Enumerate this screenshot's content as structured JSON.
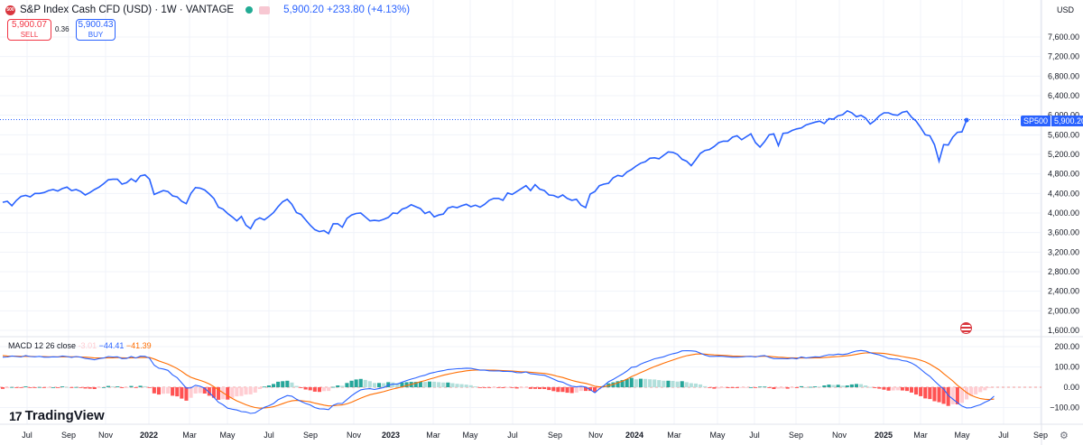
{
  "header": {
    "logo_text": "500",
    "title": "S&P Index Cash CFD (USD) · 1W · VANTAGE",
    "last": "5,900.20",
    "change": "+233.80 (+4.13%)"
  },
  "quote": {
    "sell_price": "5,900.07",
    "sell_label": "SELL",
    "spread": "0.36",
    "buy_price": "5,900.43",
    "buy_label": "BUY"
  },
  "currency": "USD",
  "last_tag": {
    "symbol": "SP500",
    "value": "5,900.20"
  },
  "macd_legend": {
    "label": "MACD 12 26 close",
    "hist": "-3.01",
    "macd": "−44.41",
    "signal": "−41.39"
  },
  "brand": "TradingView",
  "colors": {
    "price": "#2962ff",
    "macd": "#2962ff",
    "signal": "#ff6d00",
    "hist_pos_strong": "#26a69a",
    "hist_pos_weak": "#b2dfdb",
    "hist_neg_strong": "#ff5252",
    "hist_neg_weak": "#ffcdd2"
  },
  "chart_data": [
    {
      "type": "line",
      "title": "S&P Index Cash CFD (USD) · 1W · VANTAGE",
      "x_labels": [
        "Jul",
        "Sep",
        "Nov",
        "2022",
        "Mar",
        "May",
        "Jul",
        "Sep",
        "Nov",
        "2023",
        "Mar",
        "May",
        "Jul",
        "Sep",
        "Nov",
        "2024",
        "Mar",
        "May",
        "Jul",
        "Sep",
        "Nov",
        "2025",
        "Mar",
        "May",
        "Jul",
        "Sep"
      ],
      "y_ticks": [
        1600,
        2000,
        2400,
        2800,
        3200,
        3600,
        4000,
        4400,
        4800,
        5200,
        5600,
        6000,
        6400,
        6800,
        7200,
        7600
      ],
      "y_tick_labels": [
        "1,600.00",
        "2,000.00",
        "2,400.00",
        "2,800.00",
        "3,200.00",
        "3,600.00",
        "4,000.00",
        "4,400.00",
        "4,800.00",
        "5,200.00",
        "5,600.00",
        "6,000.00",
        "6,400.00",
        "6,800.00",
        "7,200.00",
        "7,600.00"
      ],
      "ylim": [
        1450,
        7900
      ],
      "series": [
        {
          "name": "SP500",
          "values": [
            4220,
            4240,
            4150,
            4260,
            4340,
            4360,
            4330,
            4400,
            4400,
            4420,
            4460,
            4480,
            4450,
            4500,
            4530,
            4460,
            4480,
            4440,
            4370,
            4420,
            4480,
            4530,
            4600,
            4680,
            4690,
            4690,
            4590,
            4620,
            4700,
            4640,
            4760,
            4780,
            4690,
            4380,
            4420,
            4460,
            4440,
            4350,
            4330,
            4240,
            4190,
            4400,
            4520,
            4510,
            4470,
            4390,
            4300,
            4120,
            4080,
            3990,
            3920,
            3840,
            3930,
            3750,
            3680,
            3850,
            3900,
            3860,
            3930,
            4010,
            4130,
            4230,
            4280,
            4180,
            4010,
            3970,
            3860,
            3750,
            3660,
            3620,
            3640,
            3580,
            3780,
            3780,
            3710,
            3890,
            3960,
            3990,
            4000,
            3920,
            3840,
            3850,
            3840,
            3870,
            3910,
            4000,
            3990,
            4080,
            4110,
            4170,
            4130,
            4090,
            3990,
            4030,
            3920,
            3960,
            3980,
            4100,
            4130,
            4110,
            4150,
            4180,
            4130,
            4160,
            4120,
            4180,
            4260,
            4300,
            4300,
            4260,
            4410,
            4380,
            4440,
            4500,
            4560,
            4460,
            4580,
            4490,
            4460,
            4370,
            4360,
            4320,
            4370,
            4300,
            4260,
            4280,
            4160,
            4110,
            4390,
            4440,
            4560,
            4590,
            4610,
            4720,
            4770,
            4750,
            4840,
            4890,
            4960,
            5020,
            5050,
            5120,
            5130,
            5110,
            5180,
            5250,
            5240,
            5200,
            5100,
            5060,
            4970,
            5090,
            5220,
            5280,
            5300,
            5360,
            5440,
            5470,
            5470,
            5550,
            5580,
            5500,
            5560,
            5620,
            5440,
            5350,
            5460,
            5600,
            5620,
            5380,
            5630,
            5640,
            5690,
            5720,
            5740,
            5800,
            5830,
            5860,
            5880,
            5830,
            5930,
            5920,
            5990,
            6010,
            6090,
            6050,
            5970,
            6000,
            5940,
            5820,
            5890,
            5990,
            6050,
            6050,
            6010,
            6000,
            6060,
            6080,
            5960,
            5880,
            5750,
            5600,
            5580,
            5400,
            5060,
            5400,
            5390,
            5550,
            5650,
            5660,
            5900.2
          ]
        }
      ]
    },
    {
      "type": "bar",
      "title": "MACD 12 26 close",
      "y_ticks": [
        -100,
        0,
        100,
        200
      ],
      "y_tick_labels": [
        "−100.00",
        "0.00",
        "100.00",
        "200.00"
      ],
      "ylim": [
        -145,
        235
      ],
      "series": [
        {
          "name": "MACD",
          "values": [
            148,
            149,
            154,
            151,
            149,
            156,
            151,
            150,
            152,
            148,
            148,
            150,
            149,
            154,
            151,
            147,
            151,
            148,
            142,
            139,
            135,
            141,
            144,
            151,
            149,
            150,
            141,
            142,
            151,
            144,
            153,
            152,
            143,
            109,
            94,
            90,
            83,
            61,
            47,
            22,
            -4,
            -3,
            10,
            5,
            -5,
            -26,
            -49,
            -74,
            -86,
            -103,
            -108,
            -112,
            -120,
            -122,
            -129,
            -126,
            -112,
            -99,
            -91,
            -80,
            -62,
            -51,
            -41,
            -44,
            -59,
            -70,
            -80,
            -87,
            -100,
            -106,
            -107,
            -110,
            -89,
            -80,
            -80,
            -61,
            -42,
            -26,
            -13,
            -9,
            -7,
            -11,
            -6,
            -2,
            10,
            15,
            16,
            25,
            33,
            40,
            46,
            54,
            59,
            68,
            73,
            78,
            82,
            87,
            89,
            91,
            92,
            94,
            93,
            89,
            84,
            84,
            81,
            80,
            81,
            78,
            78,
            77,
            72,
            71,
            75,
            66,
            64,
            61,
            59,
            50,
            40,
            30,
            25,
            14,
            5,
            2,
            5,
            1,
            -12,
            -27,
            -8,
            8,
            27,
            38,
            52,
            65,
            80,
            98,
            101,
            114,
            123,
            131,
            140,
            145,
            150,
            158,
            165,
            170,
            179,
            180,
            179,
            177,
            168,
            158,
            152,
            152,
            153,
            152,
            150,
            148,
            148,
            149,
            151,
            152,
            149,
            154,
            156,
            147,
            141,
            141,
            141,
            140,
            143,
            140,
            149,
            144,
            147,
            150,
            149,
            155,
            160,
            159,
            163,
            161,
            164,
            172,
            178,
            181,
            178,
            170,
            164,
            159,
            151,
            142,
            139,
            138,
            131,
            128,
            119,
            106,
            89,
            70,
            54,
            31,
            10,
            -9,
            -40,
            -58,
            -76,
            -93,
            -102,
            -101,
            -93,
            -86,
            -74,
            -64,
            -44
          ]
        },
        {
          "name": "Signal",
          "values": [
            156,
            154,
            153,
            153,
            152,
            152,
            152,
            151,
            151,
            151,
            150,
            150,
            150,
            150,
            150,
            150,
            150,
            149,
            148,
            146,
            144,
            144,
            144,
            145,
            145,
            146,
            145,
            144,
            145,
            145,
            146,
            147,
            146,
            139,
            130,
            122,
            114,
            103,
            92,
            78,
            62,
            49,
            41,
            34,
            26,
            16,
            3,
            -12,
            -27,
            -42,
            -55,
            -67,
            -77,
            -86,
            -94,
            -100,
            -103,
            -102,
            -100,
            -96,
            -89,
            -81,
            -73,
            -67,
            -65,
            -66,
            -69,
            -72,
            -78,
            -83,
            -88,
            -92,
            -91,
            -89,
            -87,
            -82,
            -74,
            -64,
            -54,
            -45,
            -37,
            -32,
            -27,
            -22,
            -15,
            -9,
            -4,
            2,
            8,
            14,
            20,
            27,
            33,
            40,
            46,
            53,
            59,
            64,
            69,
            74,
            77,
            81,
            83,
            85,
            85,
            85,
            84,
            84,
            83,
            82,
            81,
            80,
            78,
            76,
            76,
            74,
            72,
            70,
            68,
            64,
            59,
            53,
            48,
            41,
            34,
            28,
            23,
            19,
            13,
            5,
            2,
            3,
            8,
            14,
            22,
            30,
            40,
            52,
            62,
            72,
            82,
            92,
            102,
            110,
            118,
            126,
            134,
            142,
            149,
            155,
            159,
            163,
            164,
            163,
            161,
            159,
            158,
            157,
            156,
            154,
            153,
            152,
            152,
            152,
            151,
            152,
            153,
            152,
            150,
            148,
            147,
            145,
            145,
            144,
            144,
            144,
            144,
            145,
            145,
            146,
            148,
            150,
            151,
            153,
            155,
            158,
            162,
            166,
            169,
            170,
            169,
            168,
            166,
            163,
            159,
            155,
            151,
            147,
            143,
            139,
            133,
            125,
            114,
            100,
            86,
            67,
            49,
            31,
            10,
            -8,
            -26,
            -40,
            -49,
            -56,
            -59,
            -61,
            -58
          ]
        },
        {
          "name": "Histogram",
          "values": [
            -8,
            -5,
            1,
            -2,
            -3,
            4,
            -1,
            -1,
            1,
            -3,
            -2,
            0,
            -1,
            4,
            1,
            -3,
            1,
            -1,
            -6,
            -7,
            -9,
            -3,
            0,
            6,
            4,
            4,
            -4,
            -2,
            6,
            -1,
            7,
            5,
            -3,
            -30,
            -36,
            -32,
            -31,
            -42,
            -45,
            -56,
            -66,
            -52,
            -31,
            -29,
            -31,
            -42,
            -52,
            -62,
            -59,
            -61,
            -53,
            -45,
            -43,
            -36,
            -35,
            -26,
            -9,
            3,
            9,
            16,
            27,
            30,
            32,
            23,
            6,
            -4,
            -11,
            -15,
            -22,
            -23,
            -19,
            -18,
            2,
            9,
            7,
            21,
            32,
            38,
            41,
            36,
            30,
            21,
            21,
            20,
            25,
            24,
            20,
            23,
            25,
            26,
            26,
            27,
            26,
            28,
            27,
            25,
            23,
            23,
            20,
            17,
            15,
            13,
            10,
            4,
            -1,
            -1,
            -3,
            -2,
            -2,
            -4,
            -3,
            -3,
            -6,
            -5,
            -1,
            -8,
            -8,
            -9,
            -9,
            -14,
            -19,
            -23,
            -23,
            -27,
            -29,
            -26,
            -18,
            -18,
            -18,
            -25,
            -10,
            6,
            19,
            24,
            30,
            35,
            40,
            46,
            39,
            42,
            41,
            39,
            38,
            35,
            32,
            32,
            31,
            28,
            30,
            25,
            20,
            18,
            14,
            5,
            -3,
            -7,
            -6,
            -4,
            -4,
            -4,
            -4,
            -3,
            -1,
            0,
            -1,
            3,
            3,
            -4,
            -9,
            -7,
            -6,
            -7,
            -1,
            -4,
            5,
            0,
            2,
            4,
            3,
            9,
            13,
            11,
            12,
            8,
            9,
            14,
            16,
            15,
            9,
            1,
            -4,
            -7,
            -12,
            -17,
            -16,
            -15,
            -16,
            -18,
            -26,
            -36,
            -44,
            -55,
            -58,
            -69,
            -74,
            -82,
            -92,
            -84,
            -84,
            -77,
            -60,
            -42,
            -35,
            -24,
            -15,
            -3.01
          ]
        }
      ]
    }
  ]
}
